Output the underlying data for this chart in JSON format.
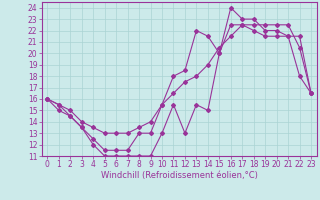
{
  "xlabel": "Windchill (Refroidissement éolien,°C)",
  "xlim": [
    -0.5,
    23.5
  ],
  "ylim": [
    11,
    24.5
  ],
  "yticks": [
    11,
    12,
    13,
    14,
    15,
    16,
    17,
    18,
    19,
    20,
    21,
    22,
    23,
    24
  ],
  "xticks": [
    0,
    1,
    2,
    3,
    4,
    5,
    6,
    7,
    8,
    9,
    10,
    11,
    12,
    13,
    14,
    15,
    16,
    17,
    18,
    19,
    20,
    21,
    22,
    23
  ],
  "background_color": "#cceaea",
  "grid_color": "#aad4d4",
  "line_color": "#993399",
  "line1_x": [
    0,
    1,
    2,
    3,
    4,
    5,
    6,
    7,
    8,
    9,
    10,
    11,
    12,
    13,
    14,
    15,
    16,
    17,
    18,
    19,
    20,
    21,
    22,
    23
  ],
  "line1_y": [
    16.0,
    15.0,
    14.5,
    13.5,
    12.0,
    11.0,
    11.0,
    11.0,
    11.0,
    11.0,
    13.0,
    15.5,
    13.0,
    15.5,
    15.0,
    20.0,
    22.5,
    22.5,
    22.0,
    21.5,
    21.5,
    21.5,
    18.0,
    16.5
  ],
  "line2_x": [
    0,
    1,
    2,
    3,
    4,
    5,
    6,
    7,
    8,
    9,
    10,
    11,
    12,
    13,
    14,
    15,
    16,
    17,
    18,
    19,
    20,
    21,
    22,
    23
  ],
  "line2_y": [
    16.0,
    15.5,
    14.5,
    13.5,
    12.5,
    11.5,
    11.5,
    11.5,
    13.0,
    13.0,
    15.5,
    18.0,
    18.5,
    22.0,
    21.5,
    20.0,
    24.0,
    23.0,
    23.0,
    22.0,
    22.0,
    21.5,
    21.5,
    16.5
  ],
  "line3_x": [
    0,
    1,
    2,
    3,
    4,
    5,
    6,
    7,
    8,
    9,
    10,
    11,
    12,
    13,
    14,
    15,
    16,
    17,
    18,
    19,
    20,
    21,
    22,
    23
  ],
  "line3_y": [
    16.0,
    15.5,
    15.0,
    14.0,
    13.5,
    13.0,
    13.0,
    13.0,
    13.5,
    14.0,
    15.5,
    16.5,
    17.5,
    18.0,
    19.0,
    20.5,
    21.5,
    22.5,
    22.5,
    22.5,
    22.5,
    22.5,
    20.5,
    16.5
  ],
  "tick_fontsize": 5.5,
  "xlabel_fontsize": 6.0,
  "marker_size": 2.0,
  "line_width": 0.8
}
